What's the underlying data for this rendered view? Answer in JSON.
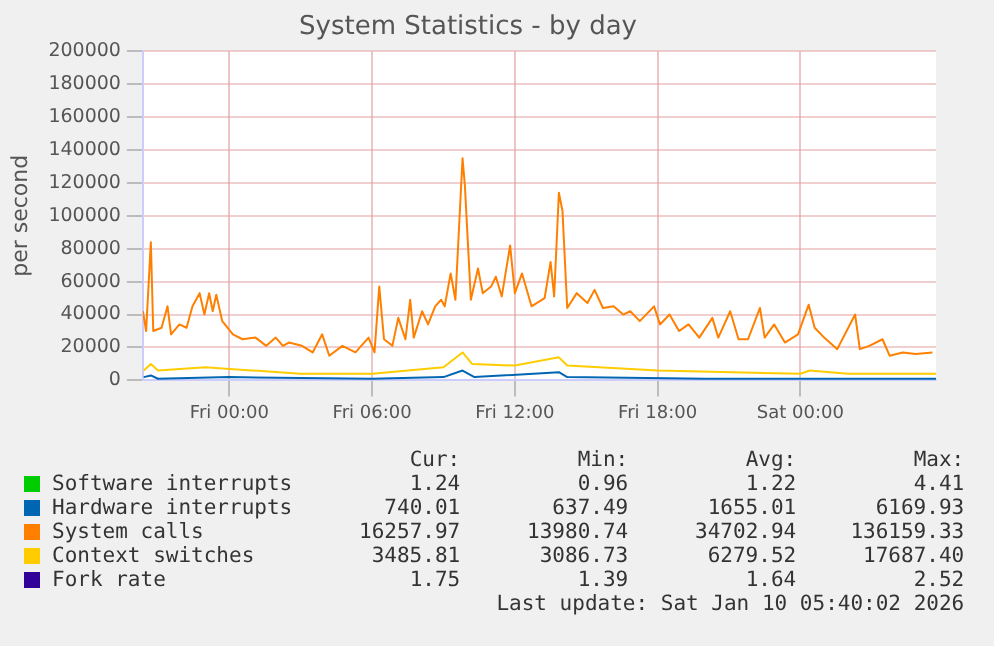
{
  "chart_data": {
    "type": "line",
    "title": "System Statistics - by day",
    "ylabel": "per second",
    "xlim": [
      "2026-01-08T20:22",
      "2026-01-10T05:42"
    ],
    "xticks": [
      {
        "value": "2026-01-09T00:00",
        "label": "Fri 00:00"
      },
      {
        "value": "2026-01-09T06:00",
        "label": "Fri 06:00"
      },
      {
        "value": "2026-01-09T12:00",
        "label": "Fri 12:00"
      },
      {
        "value": "2026-01-09T18:00",
        "label": "Fri 18:00"
      },
      {
        "value": "2026-01-10T00:00",
        "label": "Sat 00:00"
      }
    ],
    "ylim": [
      0,
      200000
    ],
    "yticks": [
      0,
      20000,
      40000,
      60000,
      80000,
      100000,
      120000,
      140000,
      160000,
      180000,
      200000
    ],
    "grid": true,
    "legend": "bottom",
    "marker": "none",
    "line_style": "solid",
    "series": [
      {
        "name": "Software interrupts",
        "color": "#00cc00"
      },
      {
        "name": "Hardware interrupts",
        "color": "#0066b3",
        "x": [
          "2026-01-08T20:24",
          "2026-01-08T20:42",
          "2026-01-08T21:00",
          "2026-01-09T00:00",
          "2026-01-09T06:00",
          "2026-01-09T09:00",
          "2026-01-09T09:48",
          "2026-01-09T10:18",
          "2026-01-09T13:51",
          "2026-01-09T14:12",
          "2026-01-09T20:00",
          "2026-01-10T05:42"
        ],
        "values": [
          2000,
          3000,
          1000,
          2000,
          1000,
          2000,
          6000,
          2000,
          5000,
          2000,
          1000,
          1000
        ]
      },
      {
        "name": "System calls",
        "color": "#ff8000",
        "x": [
          "2026-01-08T20:22",
          "2026-01-08T20:30",
          "2026-01-08T20:42",
          "2026-01-08T20:48",
          "2026-01-08T21:09",
          "2026-01-08T21:24",
          "2026-01-08T21:33",
          "2026-01-08T21:54",
          "2026-01-08T22:12",
          "2026-01-08T22:27",
          "2026-01-08T22:45",
          "2026-01-08T22:57",
          "2026-01-08T23:09",
          "2026-01-08T23:18",
          "2026-01-08T23:27",
          "2026-01-08T23:42",
          "2026-01-09T00:09",
          "2026-01-09T00:33",
          "2026-01-09T01:06",
          "2026-01-09T01:33",
          "2026-01-09T01:57",
          "2026-01-09T02:15",
          "2026-01-09T02:30",
          "2026-01-09T03:03",
          "2026-01-09T03:30",
          "2026-01-09T03:54",
          "2026-01-09T04:12",
          "2026-01-09T04:45",
          "2026-01-09T05:18",
          "2026-01-09T05:51",
          "2026-01-09T06:06",
          "2026-01-09T06:18",
          "2026-01-09T06:30",
          "2026-01-09T06:51",
          "2026-01-09T07:06",
          "2026-01-09T07:24",
          "2026-01-09T07:36",
          "2026-01-09T07:45",
          "2026-01-09T08:06",
          "2026-01-09T08:21",
          "2026-01-09T08:39",
          "2026-01-09T08:54",
          "2026-01-09T09:03",
          "2026-01-09T09:18",
          "2026-01-09T09:30",
          "2026-01-09T09:48",
          "2026-01-09T09:54",
          "2026-01-09T10:09",
          "2026-01-09T10:27",
          "2026-01-09T10:39",
          "2026-01-09T11:00",
          "2026-01-09T11:12",
          "2026-01-09T11:27",
          "2026-01-09T11:48",
          "2026-01-09T12:00",
          "2026-01-09T12:18",
          "2026-01-09T12:42",
          "2026-01-09T13:15",
          "2026-01-09T13:30",
          "2026-01-09T13:39",
          "2026-01-09T13:51",
          "2026-01-09T14:00",
          "2026-01-09T14:12",
          "2026-01-09T14:36",
          "2026-01-09T15:03",
          "2026-01-09T15:21",
          "2026-01-09T15:42",
          "2026-01-09T16:09",
          "2026-01-09T16:33",
          "2026-01-09T16:51",
          "2026-01-09T17:15",
          "2026-01-09T17:51",
          "2026-01-09T18:06",
          "2026-01-09T18:30",
          "2026-01-09T18:54",
          "2026-01-09T19:18",
          "2026-01-09T19:45",
          "2026-01-09T20:18",
          "2026-01-09T20:33",
          "2026-01-09T21:03",
          "2026-01-09T21:24",
          "2026-01-09T21:48",
          "2026-01-09T22:18",
          "2026-01-09T22:30",
          "2026-01-09T22:54",
          "2026-01-09T23:21",
          "2026-01-09T23:54",
          "2026-01-10T00:21",
          "2026-01-10T00:36",
          "2026-01-10T01:00",
          "2026-01-10T01:33",
          "2026-01-10T02:18",
          "2026-01-10T02:30",
          "2026-01-10T02:54",
          "2026-01-10T03:27",
          "2026-01-10T03:45",
          "2026-01-10T04:18",
          "2026-01-10T04:51",
          "2026-01-10T05:33"
        ],
        "values": [
          42000,
          30000,
          84000,
          30000,
          32000,
          45000,
          28000,
          34000,
          32000,
          45000,
          53000,
          40000,
          53000,
          42000,
          52000,
          36000,
          28000,
          25000,
          26000,
          21000,
          26000,
          21000,
          23000,
          21000,
          17000,
          28000,
          15000,
          21000,
          17000,
          26000,
          17000,
          57000,
          25000,
          21000,
          38000,
          25000,
          49000,
          26000,
          42000,
          34000,
          45000,
          49000,
          45000,
          65000,
          49000,
          135000,
          118000,
          49000,
          68000,
          53000,
          57000,
          63000,
          51000,
          82000,
          53000,
          65000,
          45000,
          50000,
          72000,
          51000,
          114000,
          103000,
          44000,
          53000,
          47000,
          55000,
          44000,
          45000,
          40000,
          42000,
          36000,
          45000,
          34000,
          40000,
          30000,
          34000,
          26000,
          38000,
          26000,
          42000,
          25000,
          25000,
          44000,
          26000,
          34000,
          23000,
          28000,
          46000,
          32000,
          26000,
          19000,
          40000,
          19000,
          21000,
          25000,
          15000,
          17000,
          16000,
          17000
        ]
      },
      {
        "name": "Context switches",
        "color": "#ffcc00",
        "x": [
          "2026-01-08T20:24",
          "2026-01-08T20:42",
          "2026-01-08T21:00",
          "2026-01-08T23:00",
          "2026-01-09T00:00",
          "2026-01-09T03:00",
          "2026-01-09T06:00",
          "2026-01-09T07:30",
          "2026-01-09T09:00",
          "2026-01-09T09:48",
          "2026-01-09T10:12",
          "2026-01-09T12:00",
          "2026-01-09T13:51",
          "2026-01-09T14:12",
          "2026-01-09T18:00",
          "2026-01-10T00:00",
          "2026-01-10T00:24",
          "2026-01-10T02:00",
          "2026-01-10T05:42"
        ],
        "values": [
          6000,
          10000,
          6000,
          8000,
          7000,
          4000,
          4000,
          6000,
          8000,
          17000,
          10000,
          9000,
          14000,
          9000,
          6000,
          4000,
          6000,
          4000,
          4000
        ]
      },
      {
        "name": "Fork rate",
        "color": "#330099"
      }
    ],
    "annotations": [
      "Cur:",
      "Min:",
      "Avg:",
      "Max:",
      "1.24",
      "0.96",
      "1.22",
      "4.41",
      "740.01",
      "637.49",
      "1655.01",
      "6169.93",
      "16257.97",
      "13980.74",
      "34702.94",
      "136159.33",
      "3485.81",
      "3086.73",
      "6279.52",
      "17687.40",
      "1.75",
      "1.39",
      "1.64",
      "2.52",
      "Last update: Sat Jan 10 05:40:02 2026"
    ]
  }
}
